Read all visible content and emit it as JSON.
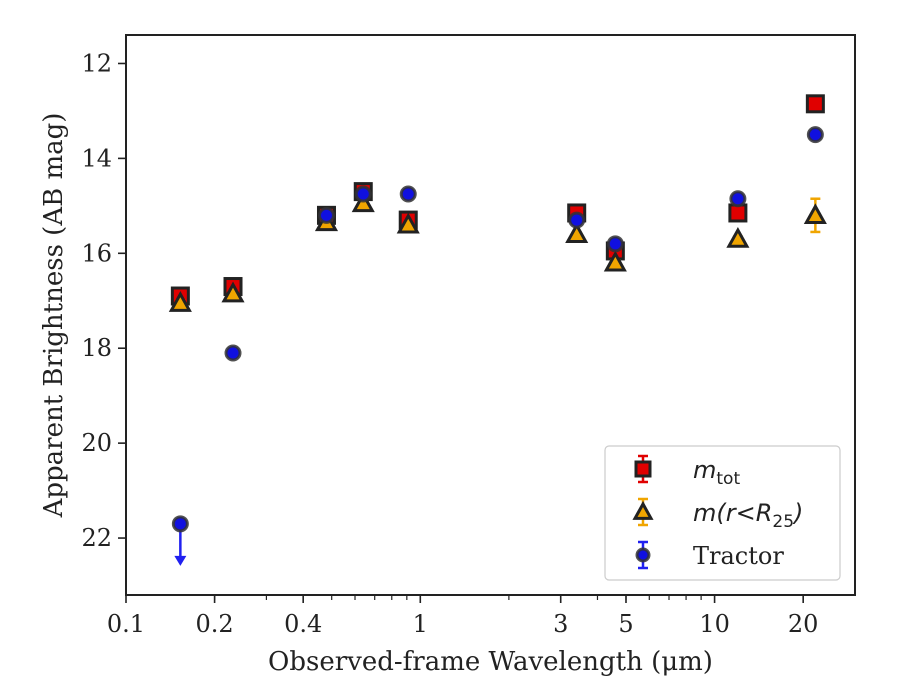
{
  "chart_data": {
    "type": "scatter",
    "xlabel": "Observed-frame Wavelength (μm)",
    "ylabel": "Apparent Brightness (AB mag)",
    "x_scale": "log",
    "y_inverted": true,
    "xlim": [
      0.1,
      30
    ],
    "ylim": [
      23.2,
      11.4
    ],
    "x_ticks": [
      {
        "value": 0.1,
        "label": "0.1"
      },
      {
        "value": 0.2,
        "label": "0.2"
      },
      {
        "value": 0.4,
        "label": "0.4"
      },
      {
        "value": 1,
        "label": "1"
      },
      {
        "value": 3,
        "label": "3"
      },
      {
        "value": 5,
        "label": "5"
      },
      {
        "value": 10,
        "label": "10"
      },
      {
        "value": 20,
        "label": "20"
      }
    ],
    "y_ticks": [
      {
        "value": 12,
        "label": "12"
      },
      {
        "value": 14,
        "label": "14"
      },
      {
        "value": 16,
        "label": "16"
      },
      {
        "value": 18,
        "label": "18"
      },
      {
        "value": 20,
        "label": "20"
      },
      {
        "value": 22,
        "label": "22"
      }
    ],
    "legend_position": "lower-right",
    "series": [
      {
        "name": "m_tot",
        "legend_main": "m",
        "legend_sub": "tot",
        "marker": "square",
        "color": "#e00000",
        "edge_color": "#222222",
        "err_color": "#e00000",
        "points": [
          {
            "x": 0.153,
            "y": 16.9,
            "err": 0.05
          },
          {
            "x": 0.231,
            "y": 16.7,
            "err": 0.05
          },
          {
            "x": 0.48,
            "y": 15.2,
            "err": 0.03
          },
          {
            "x": 0.64,
            "y": 14.7,
            "err": 0.03
          },
          {
            "x": 0.91,
            "y": 15.3,
            "err": 0.03
          },
          {
            "x": 3.4,
            "y": 15.15,
            "err": 0.03
          },
          {
            "x": 4.6,
            "y": 15.95,
            "err": 0.04
          },
          {
            "x": 12.0,
            "y": 15.15,
            "err": 0.04
          },
          {
            "x": 22.0,
            "y": 12.85,
            "err": 0.04
          }
        ]
      },
      {
        "name": "m(r<R_25)",
        "legend_main": "m(r<R",
        "legend_sub": "25",
        "legend_tail": ")",
        "marker": "triangle",
        "color": "#f0a500",
        "edge_color": "#222222",
        "err_color": "#f0a500",
        "points": [
          {
            "x": 0.153,
            "y": 17.05,
            "err": 0.05
          },
          {
            "x": 0.231,
            "y": 16.85,
            "err": 0.05
          },
          {
            "x": 0.48,
            "y": 15.35,
            "err": 0.03
          },
          {
            "x": 0.64,
            "y": 14.95,
            "err": 0.03
          },
          {
            "x": 0.91,
            "y": 15.4,
            "err": 0.03
          },
          {
            "x": 3.4,
            "y": 15.6,
            "err": 0.04
          },
          {
            "x": 4.6,
            "y": 16.2,
            "err": 0.05
          },
          {
            "x": 12.0,
            "y": 15.7,
            "err": 0.05
          },
          {
            "x": 22.0,
            "y": 15.2,
            "err": 0.35
          }
        ]
      },
      {
        "name": "Tractor",
        "legend_main": "Tractor",
        "marker": "circle",
        "color": "#1010e0",
        "edge_color": "#333333",
        "err_color": "#2020f0",
        "points": [
          {
            "x": 0.153,
            "y": 21.7,
            "err": 0,
            "upper_limit": true
          },
          {
            "x": 0.231,
            "y": 18.1,
            "err": 0.05
          },
          {
            "x": 0.48,
            "y": 15.2,
            "err": 0.03
          },
          {
            "x": 0.64,
            "y": 14.75,
            "err": 0.03
          },
          {
            "x": 0.91,
            "y": 14.75,
            "err": 0.03
          },
          {
            "x": 3.4,
            "y": 15.3,
            "err": 0.03
          },
          {
            "x": 4.6,
            "y": 15.8,
            "err": 0.04
          },
          {
            "x": 12.0,
            "y": 14.85,
            "err": 0.04
          },
          {
            "x": 22.0,
            "y": 13.5,
            "err": 0.04
          }
        ]
      }
    ]
  }
}
